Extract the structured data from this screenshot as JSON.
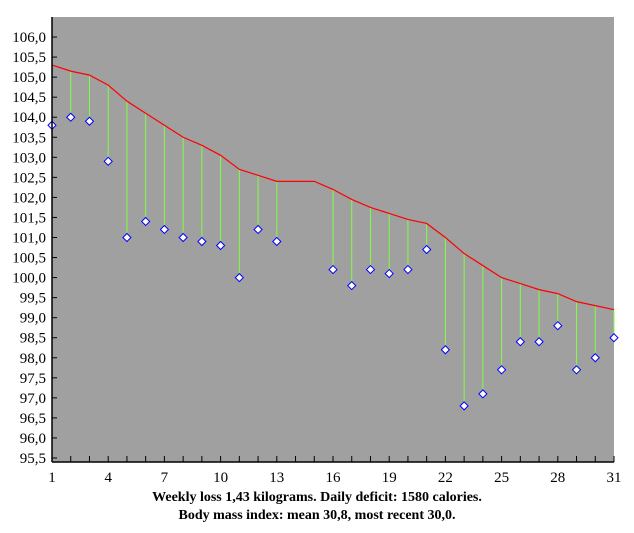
{
  "chart_data": {
    "type": "line",
    "title": "",
    "xlabel": "",
    "ylabel": "",
    "xlim": [
      1,
      31
    ],
    "ylim": [
      95.4,
      106.5
    ],
    "x_tick_labels": [
      "1",
      "4",
      "7",
      "10",
      "13",
      "16",
      "19",
      "22",
      "25",
      "28",
      "31"
    ],
    "y_tick_labels": [
      "95,5",
      "96,0",
      "96,5",
      "97,0",
      "97,5",
      "98,0",
      "98,5",
      "99,0",
      "99,5",
      "100,0",
      "100,5",
      "101,0",
      "101,5",
      "102,0",
      "102,5",
      "103,0",
      "103,5",
      "104,0",
      "104,5",
      "105,0",
      "105,5",
      "106,0"
    ],
    "grid": false,
    "background_color": "#a0a0a0",
    "trend_color": "#ff0000",
    "deviation_line_color": "#80ff40",
    "marker_stroke_color": "#0000ff",
    "marker_fill_color": "#ffffff",
    "weights": [
      {
        "day": 1,
        "value": 103.8
      },
      {
        "day": 2,
        "value": 104.0
      },
      {
        "day": 3,
        "value": 103.9
      },
      {
        "day": 4,
        "value": 102.9
      },
      {
        "day": 5,
        "value": 101.0
      },
      {
        "day": 6,
        "value": 101.4
      },
      {
        "day": 7,
        "value": 101.2
      },
      {
        "day": 8,
        "value": 101.0
      },
      {
        "day": 9,
        "value": 100.9
      },
      {
        "day": 10,
        "value": 100.8
      },
      {
        "day": 11,
        "value": 100.0
      },
      {
        "day": 12,
        "value": 101.2
      },
      {
        "day": 13,
        "value": 100.9
      },
      {
        "day": 16,
        "value": 100.2
      },
      {
        "day": 17,
        "value": 99.8
      },
      {
        "day": 18,
        "value": 100.2
      },
      {
        "day": 19,
        "value": 100.1
      },
      {
        "day": 20,
        "value": 100.2
      },
      {
        "day": 21,
        "value": 100.7
      },
      {
        "day": 22,
        "value": 98.2
      },
      {
        "day": 23,
        "value": 96.8
      },
      {
        "day": 24,
        "value": 97.1
      },
      {
        "day": 25,
        "value": 97.7
      },
      {
        "day": 26,
        "value": 98.4
      },
      {
        "day": 27,
        "value": 98.4
      },
      {
        "day": 28,
        "value": 98.8
      },
      {
        "day": 29,
        "value": 97.7
      },
      {
        "day": 30,
        "value": 98.0
      },
      {
        "day": 31,
        "value": 98.5
      }
    ],
    "trend": [
      105.3,
      105.15,
      105.05,
      104.8,
      104.4,
      104.1,
      103.8,
      103.5,
      103.3,
      103.05,
      102.7,
      102.55,
      102.4,
      102.4,
      102.4,
      102.2,
      101.95,
      101.75,
      101.6,
      101.45,
      101.35,
      101.0,
      100.6,
      100.3,
      100.0,
      99.85,
      99.7,
      99.6,
      99.4,
      99.3,
      99.2
    ]
  },
  "caption": {
    "line1": "Weekly loss 1,43 kilograms. Daily deficit: 1580 calories.",
    "line2": "Body mass index: mean 30,8, most recent 30,0."
  }
}
